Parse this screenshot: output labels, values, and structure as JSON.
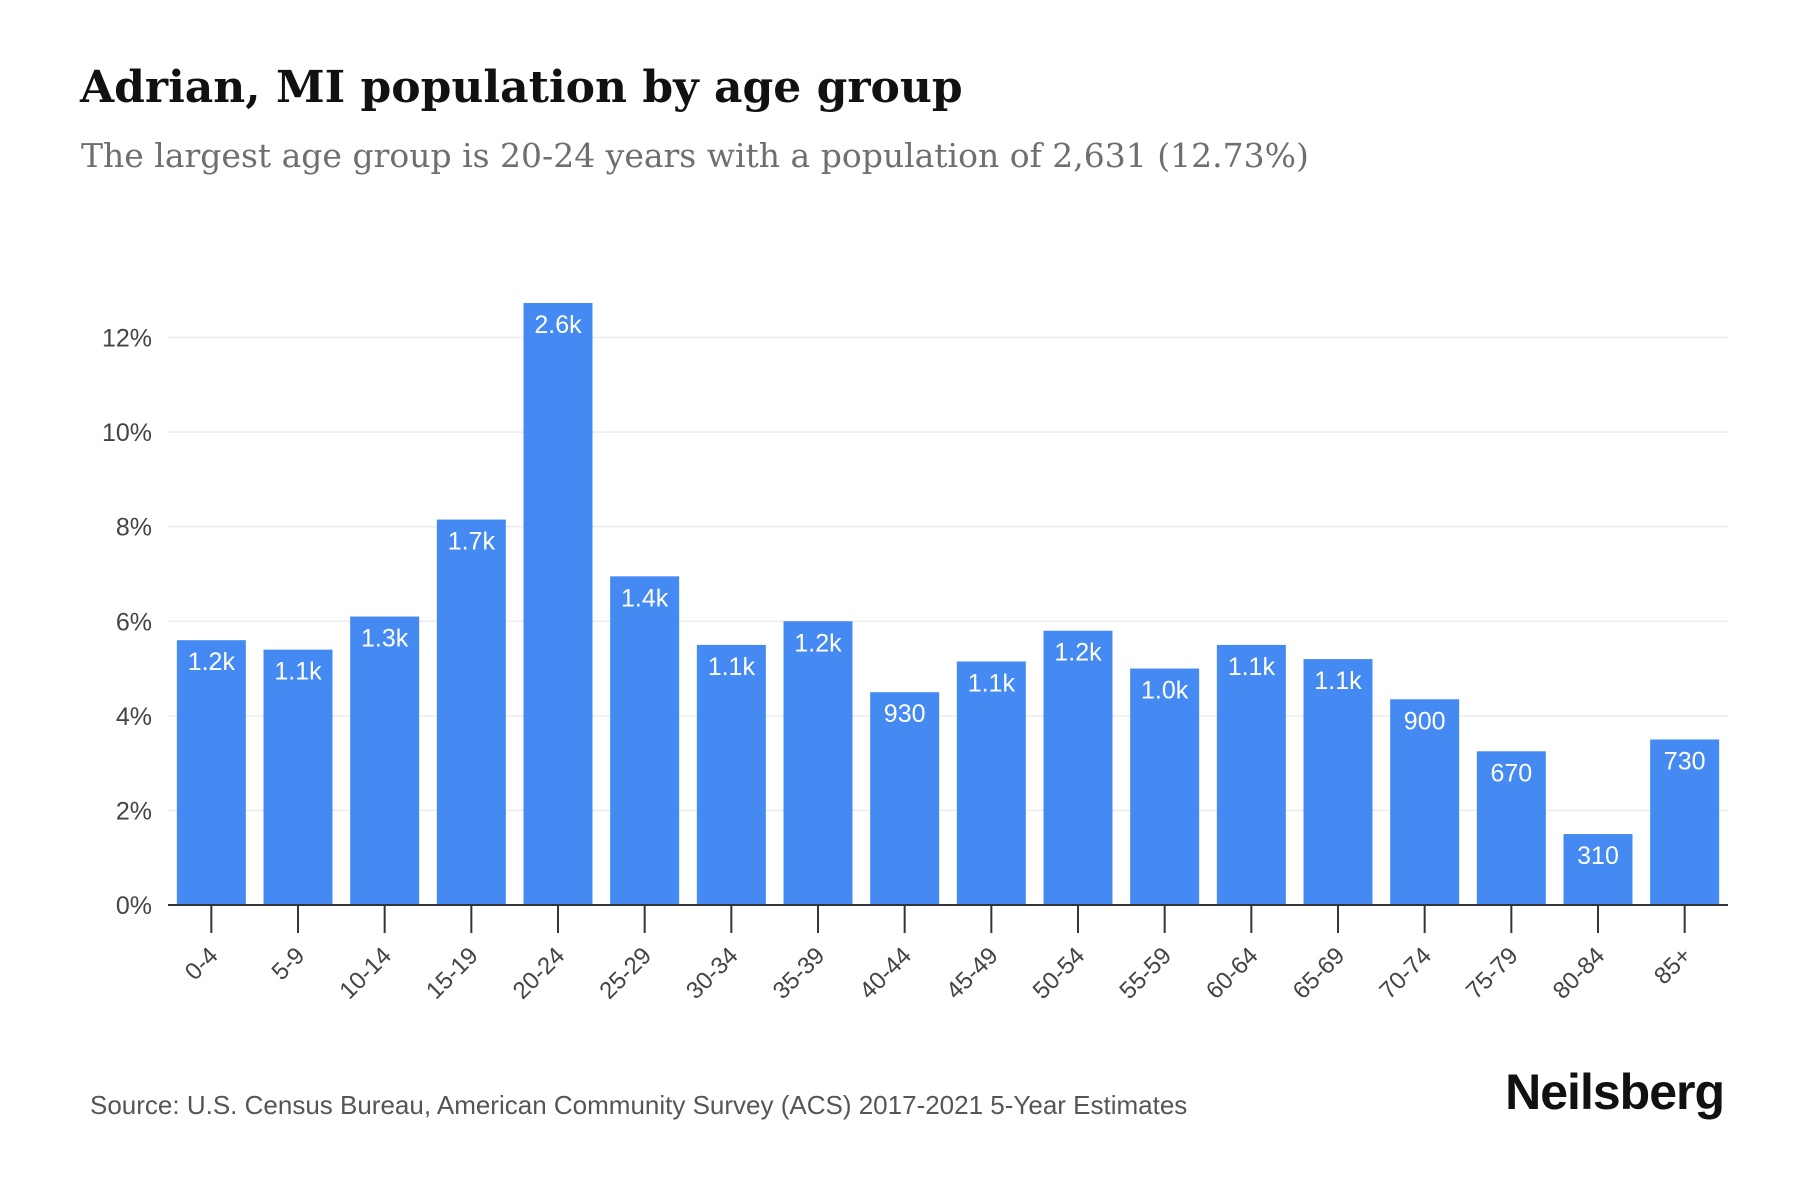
{
  "header": {
    "title": "Adrian, MI population by age group",
    "subtitle": "The largest age group is 20-24 years with a population of 2,631 (12.73%)"
  },
  "footer": {
    "source": "Source: U.S. Census Bureau, American Community Survey (ACS) 2017-2021 5-Year Estimates",
    "brand": "Neilsberg"
  },
  "colors": {
    "bar": "#4589f2",
    "bar_label": "#ffffff",
    "grid": "#ececec",
    "axis": "#333333",
    "tick_text": "#444444"
  },
  "chart_data": {
    "type": "bar",
    "title": "Adrian, MI population by age group",
    "subtitle": "The largest age group is 20-24 years with a population of 2,631 (12.73%)",
    "xlabel": "",
    "ylabel": "",
    "categories": [
      "0-4",
      "5-9",
      "10-14",
      "15-19",
      "20-24",
      "25-29",
      "30-34",
      "35-39",
      "40-44",
      "45-49",
      "50-54",
      "55-59",
      "60-64",
      "65-69",
      "70-74",
      "75-79",
      "80-84",
      "85+"
    ],
    "values": [
      5.6,
      5.4,
      6.1,
      8.15,
      12.73,
      6.95,
      5.5,
      6.0,
      4.5,
      5.15,
      5.8,
      5.0,
      5.5,
      5.2,
      4.35,
      3.25,
      1.5,
      3.5
    ],
    "data_labels": [
      "1.2k",
      "1.1k",
      "1.3k",
      "1.7k",
      "2.6k",
      "1.4k",
      "1.1k",
      "1.2k",
      "930",
      "1.1k",
      "1.2k",
      "1.0k",
      "1.1k",
      "1.1k",
      "900",
      "670",
      "310",
      "730"
    ],
    "ylim": [
      0,
      12.73
    ],
    "yticks": [
      0,
      2,
      4,
      6,
      8,
      10,
      12
    ],
    "ytick_labels": [
      "0%",
      "2%",
      "4%",
      "6%",
      "8%",
      "10%",
      "12%"
    ],
    "grid": true,
    "legend": "none"
  }
}
